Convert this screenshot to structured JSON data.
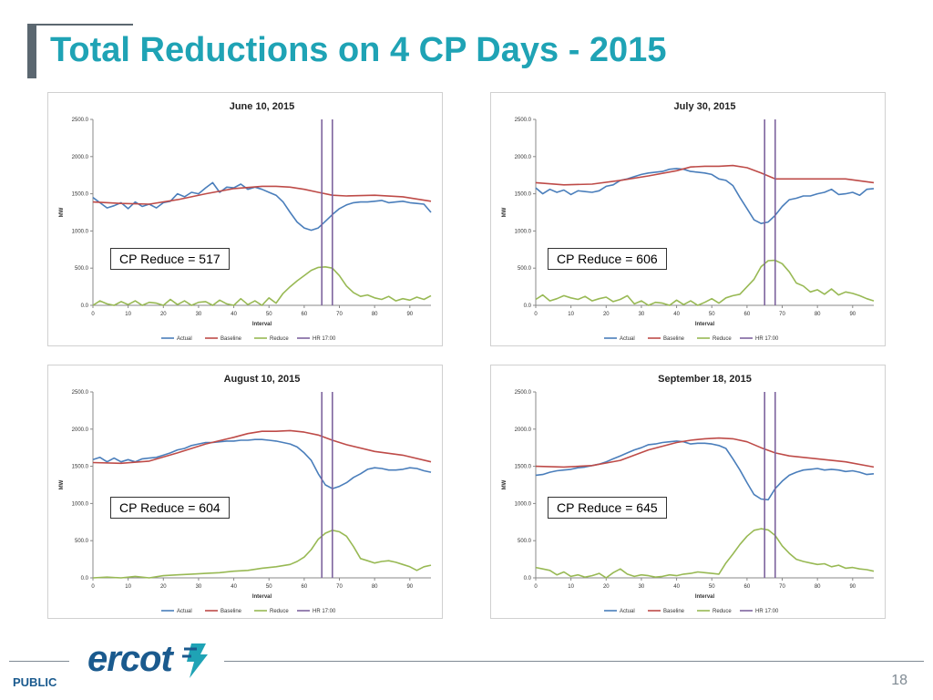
{
  "slide": {
    "title": "Total Reductions on 4 CP Days - 2015",
    "footer_label": "PUBLIC",
    "page_number": "18",
    "logo_text": "ercot"
  },
  "colors": {
    "title": "#1fa3b5",
    "actual": "#4a7ebb",
    "baseline": "#be4b48",
    "reduce": "#98b954",
    "hr": "#7e649e",
    "brand": "#1a5a8e"
  },
  "chart_data": [
    {
      "type": "line",
      "title": "June 10, 2015",
      "xlabel": "Interval",
      "ylabel": "MW",
      "xlim": [
        0,
        96
      ],
      "ylim": [
        0,
        2500
      ],
      "xticks": [
        "0",
        "10",
        "20",
        "30",
        "40",
        "50",
        "60",
        "70",
        "80",
        "90"
      ],
      "yticks": [
        "0.0",
        "500.0",
        "1000.0",
        "1500.0",
        "2000.0",
        "2500.0"
      ],
      "hr_lines": [
        65,
        68
      ],
      "legend": [
        "Actual",
        "Baseline",
        "Reduce",
        "HR 17:00"
      ],
      "annotation": "CP Reduce = 517",
      "series": [
        {
          "name": "Actual",
          "x": [
            0,
            2,
            4,
            6,
            8,
            10,
            12,
            14,
            16,
            18,
            20,
            22,
            24,
            26,
            28,
            30,
            32,
            34,
            36,
            38,
            40,
            42,
            44,
            46,
            48,
            50,
            52,
            54,
            56,
            58,
            60,
            62,
            64,
            66,
            68,
            70,
            72,
            74,
            76,
            78,
            80,
            82,
            84,
            86,
            88,
            90,
            92,
            94,
            96
          ],
          "y": [
            1450,
            1380,
            1310,
            1340,
            1380,
            1300,
            1390,
            1330,
            1360,
            1310,
            1380,
            1400,
            1500,
            1460,
            1520,
            1500,
            1580,
            1650,
            1520,
            1590,
            1580,
            1630,
            1560,
            1590,
            1560,
            1520,
            1480,
            1390,
            1250,
            1120,
            1040,
            1010,
            1040,
            1130,
            1220,
            1300,
            1350,
            1380,
            1390,
            1390,
            1400,
            1410,
            1380,
            1390,
            1400,
            1380,
            1370,
            1360,
            1250
          ]
        },
        {
          "name": "Baseline",
          "x": [
            0,
            8,
            16,
            24,
            32,
            40,
            48,
            52,
            56,
            60,
            64,
            68,
            72,
            80,
            88,
            96
          ],
          "y": [
            1390,
            1370,
            1360,
            1420,
            1500,
            1570,
            1600,
            1600,
            1590,
            1560,
            1520,
            1480,
            1470,
            1480,
            1460,
            1400
          ]
        },
        {
          "name": "Reduce",
          "x": [
            0,
            2,
            4,
            6,
            8,
            10,
            12,
            14,
            16,
            18,
            20,
            22,
            24,
            26,
            28,
            30,
            32,
            34,
            36,
            38,
            40,
            42,
            44,
            46,
            48,
            50,
            52,
            54,
            56,
            58,
            60,
            62,
            64,
            66,
            68,
            70,
            72,
            74,
            76,
            78,
            80,
            82,
            84,
            86,
            88,
            90,
            92,
            94,
            96
          ],
          "y": [
            0,
            60,
            20,
            0,
            50,
            10,
            60,
            0,
            40,
            30,
            0,
            80,
            10,
            60,
            0,
            40,
            50,
            0,
            70,
            20,
            0,
            90,
            10,
            60,
            0,
            100,
            30,
            160,
            250,
            330,
            400,
            470,
            510,
            517,
            500,
            400,
            260,
            170,
            120,
            140,
            100,
            80,
            120,
            60,
            90,
            70,
            110,
            80,
            130
          ]
        }
      ]
    },
    {
      "type": "line",
      "title": "July 30, 2015",
      "xlabel": "Interval",
      "ylabel": "MW",
      "xlim": [
        0,
        96
      ],
      "ylim": [
        0,
        2500
      ],
      "xticks": [
        "0",
        "10",
        "20",
        "30",
        "40",
        "50",
        "60",
        "70",
        "80",
        "90"
      ],
      "yticks": [
        "0.0",
        "500.0",
        "1000.0",
        "1500.0",
        "2000.0",
        "2500.0"
      ],
      "hr_lines": [
        65,
        68
      ],
      "legend": [
        "Actual",
        "Baseline",
        "Reduce",
        "HR 17:00"
      ],
      "annotation": "CP Reduce = 606",
      "series": [
        {
          "name": "Actual",
          "x": [
            0,
            2,
            4,
            6,
            8,
            10,
            12,
            14,
            16,
            18,
            20,
            22,
            24,
            26,
            28,
            30,
            32,
            34,
            36,
            38,
            40,
            42,
            44,
            46,
            48,
            50,
            52,
            54,
            56,
            58,
            60,
            62,
            64,
            66,
            68,
            70,
            72,
            74,
            76,
            78,
            80,
            82,
            84,
            86,
            88,
            90,
            92,
            94,
            96
          ],
          "y": [
            1580,
            1500,
            1560,
            1520,
            1550,
            1490,
            1540,
            1530,
            1520,
            1540,
            1600,
            1620,
            1680,
            1700,
            1730,
            1760,
            1780,
            1790,
            1800,
            1830,
            1840,
            1830,
            1800,
            1790,
            1780,
            1760,
            1700,
            1680,
            1610,
            1450,
            1300,
            1150,
            1100,
            1120,
            1210,
            1330,
            1420,
            1440,
            1470,
            1470,
            1500,
            1520,
            1560,
            1490,
            1500,
            1520,
            1480,
            1560,
            1570
          ]
        },
        {
          "name": "Baseline",
          "x": [
            0,
            8,
            16,
            24,
            32,
            40,
            44,
            48,
            52,
            56,
            60,
            64,
            68,
            72,
            80,
            88,
            96
          ],
          "y": [
            1650,
            1620,
            1630,
            1680,
            1740,
            1810,
            1860,
            1870,
            1870,
            1880,
            1850,
            1780,
            1700,
            1700,
            1700,
            1700,
            1650
          ]
        },
        {
          "name": "Reduce",
          "x": [
            0,
            2,
            4,
            6,
            8,
            10,
            12,
            14,
            16,
            18,
            20,
            22,
            24,
            26,
            28,
            30,
            32,
            34,
            36,
            38,
            40,
            42,
            44,
            46,
            48,
            50,
            52,
            54,
            56,
            58,
            60,
            62,
            64,
            66,
            68,
            70,
            72,
            74,
            76,
            78,
            80,
            82,
            84,
            86,
            88,
            90,
            92,
            94,
            96
          ],
          "y": [
            80,
            140,
            60,
            90,
            130,
            100,
            80,
            120,
            60,
            90,
            110,
            50,
            80,
            130,
            20,
            60,
            0,
            40,
            30,
            0,
            70,
            10,
            60,
            0,
            40,
            90,
            30,
            100,
            130,
            150,
            250,
            350,
            520,
            600,
            606,
            560,
            450,
            300,
            260,
            180,
            210,
            150,
            220,
            140,
            180,
            160,
            130,
            90,
            60
          ]
        }
      ]
    },
    {
      "type": "line",
      "title": "August 10, 2015",
      "xlabel": "Interval",
      "ylabel": "MW",
      "xlim": [
        0,
        96
      ],
      "ylim": [
        0,
        2500
      ],
      "xticks": [
        "0",
        "10",
        "20",
        "30",
        "40",
        "50",
        "60",
        "70",
        "80",
        "90"
      ],
      "yticks": [
        "0.0",
        "500.0",
        "1000.0",
        "1500.0",
        "2000.0",
        "2500.0"
      ],
      "hr_lines": [
        65,
        68
      ],
      "legend": [
        "Actual",
        "Baseline",
        "Reduce",
        "HR 17:00"
      ],
      "annotation": "CP Reduce = 604",
      "series": [
        {
          "name": "Actual",
          "x": [
            0,
            2,
            4,
            6,
            8,
            10,
            12,
            14,
            16,
            18,
            20,
            22,
            24,
            26,
            28,
            30,
            32,
            34,
            36,
            38,
            40,
            42,
            44,
            46,
            48,
            50,
            52,
            54,
            56,
            58,
            60,
            62,
            64,
            66,
            68,
            70,
            72,
            74,
            76,
            78,
            80,
            82,
            84,
            86,
            88,
            90,
            92,
            94,
            96
          ],
          "y": [
            1590,
            1620,
            1560,
            1610,
            1560,
            1590,
            1560,
            1600,
            1610,
            1620,
            1650,
            1680,
            1720,
            1740,
            1780,
            1800,
            1820,
            1820,
            1830,
            1840,
            1840,
            1850,
            1850,
            1860,
            1860,
            1850,
            1840,
            1820,
            1800,
            1760,
            1680,
            1580,
            1400,
            1250,
            1200,
            1230,
            1280,
            1350,
            1400,
            1460,
            1480,
            1470,
            1450,
            1450,
            1460,
            1480,
            1470,
            1440,
            1420
          ]
        },
        {
          "name": "Baseline",
          "x": [
            0,
            8,
            16,
            24,
            32,
            40,
            44,
            48,
            52,
            56,
            60,
            64,
            68,
            72,
            80,
            88,
            96
          ],
          "y": [
            1550,
            1540,
            1570,
            1680,
            1800,
            1890,
            1940,
            1970,
            1970,
            1980,
            1960,
            1920,
            1850,
            1790,
            1700,
            1650,
            1560
          ]
        },
        {
          "name": "Reduce",
          "x": [
            0,
            4,
            8,
            12,
            16,
            20,
            24,
            28,
            32,
            36,
            40,
            44,
            48,
            52,
            56,
            58,
            60,
            62,
            64,
            66,
            68,
            70,
            72,
            74,
            76,
            78,
            80,
            82,
            84,
            86,
            88,
            90,
            92,
            94,
            96
          ],
          "y": [
            0,
            10,
            0,
            20,
            0,
            30,
            40,
            50,
            60,
            70,
            90,
            100,
            130,
            150,
            180,
            220,
            280,
            380,
            520,
            600,
            640,
            620,
            560,
            420,
            260,
            230,
            200,
            220,
            230,
            210,
            180,
            150,
            100,
            150,
            170
          ]
        }
      ]
    },
    {
      "type": "line",
      "title": "September 18, 2015",
      "xlabel": "Interval",
      "ylabel": "MW",
      "xlim": [
        0,
        96
      ],
      "ylim": [
        0,
        2500
      ],
      "xticks": [
        "0",
        "10",
        "20",
        "30",
        "40",
        "50",
        "60",
        "70",
        "80",
        "90"
      ],
      "yticks": [
        "0.0",
        "500.0",
        "1000.0",
        "1500.0",
        "2000.0",
        "2500.0"
      ],
      "hr_lines": [
        65,
        68
      ],
      "legend": [
        "Actual",
        "Baseline",
        "Reduce",
        "HR 17:00"
      ],
      "annotation": "CP Reduce = 645",
      "series": [
        {
          "name": "Actual",
          "x": [
            0,
            2,
            4,
            6,
            8,
            10,
            12,
            14,
            16,
            18,
            20,
            22,
            24,
            26,
            28,
            30,
            32,
            34,
            36,
            38,
            40,
            42,
            44,
            46,
            48,
            50,
            52,
            54,
            56,
            58,
            60,
            62,
            64,
            66,
            68,
            70,
            72,
            74,
            76,
            78,
            80,
            82,
            84,
            86,
            88,
            90,
            92,
            94,
            96
          ],
          "y": [
            1380,
            1390,
            1420,
            1440,
            1450,
            1460,
            1480,
            1490,
            1510,
            1530,
            1560,
            1600,
            1640,
            1680,
            1720,
            1750,
            1790,
            1800,
            1820,
            1830,
            1840,
            1830,
            1800,
            1810,
            1810,
            1800,
            1780,
            1740,
            1600,
            1450,
            1280,
            1120,
            1060,
            1050,
            1200,
            1300,
            1380,
            1420,
            1450,
            1460,
            1470,
            1450,
            1460,
            1450,
            1430,
            1440,
            1420,
            1390,
            1400
          ]
        },
        {
          "name": "Baseline",
          "x": [
            0,
            8,
            16,
            24,
            32,
            40,
            44,
            48,
            52,
            56,
            60,
            64,
            68,
            72,
            80,
            88,
            96
          ],
          "y": [
            1500,
            1490,
            1510,
            1580,
            1720,
            1820,
            1850,
            1870,
            1880,
            1870,
            1830,
            1750,
            1680,
            1640,
            1600,
            1560,
            1490
          ]
        },
        {
          "name": "Reduce",
          "x": [
            0,
            2,
            4,
            6,
            8,
            10,
            12,
            14,
            16,
            18,
            20,
            22,
            24,
            26,
            28,
            30,
            32,
            34,
            36,
            38,
            40,
            42,
            44,
            46,
            48,
            50,
            52,
            54,
            56,
            58,
            60,
            62,
            64,
            66,
            68,
            70,
            72,
            74,
            76,
            78,
            80,
            82,
            84,
            86,
            88,
            90,
            92,
            94,
            96
          ],
          "y": [
            140,
            120,
            100,
            40,
            80,
            20,
            40,
            10,
            30,
            60,
            0,
            70,
            120,
            50,
            20,
            40,
            30,
            10,
            20,
            40,
            30,
            50,
            60,
            80,
            70,
            60,
            50,
            200,
            320,
            450,
            560,
            640,
            660,
            645,
            570,
            430,
            330,
            250,
            220,
            200,
            180,
            190,
            150,
            170,
            130,
            140,
            120,
            110,
            90
          ]
        }
      ]
    }
  ]
}
